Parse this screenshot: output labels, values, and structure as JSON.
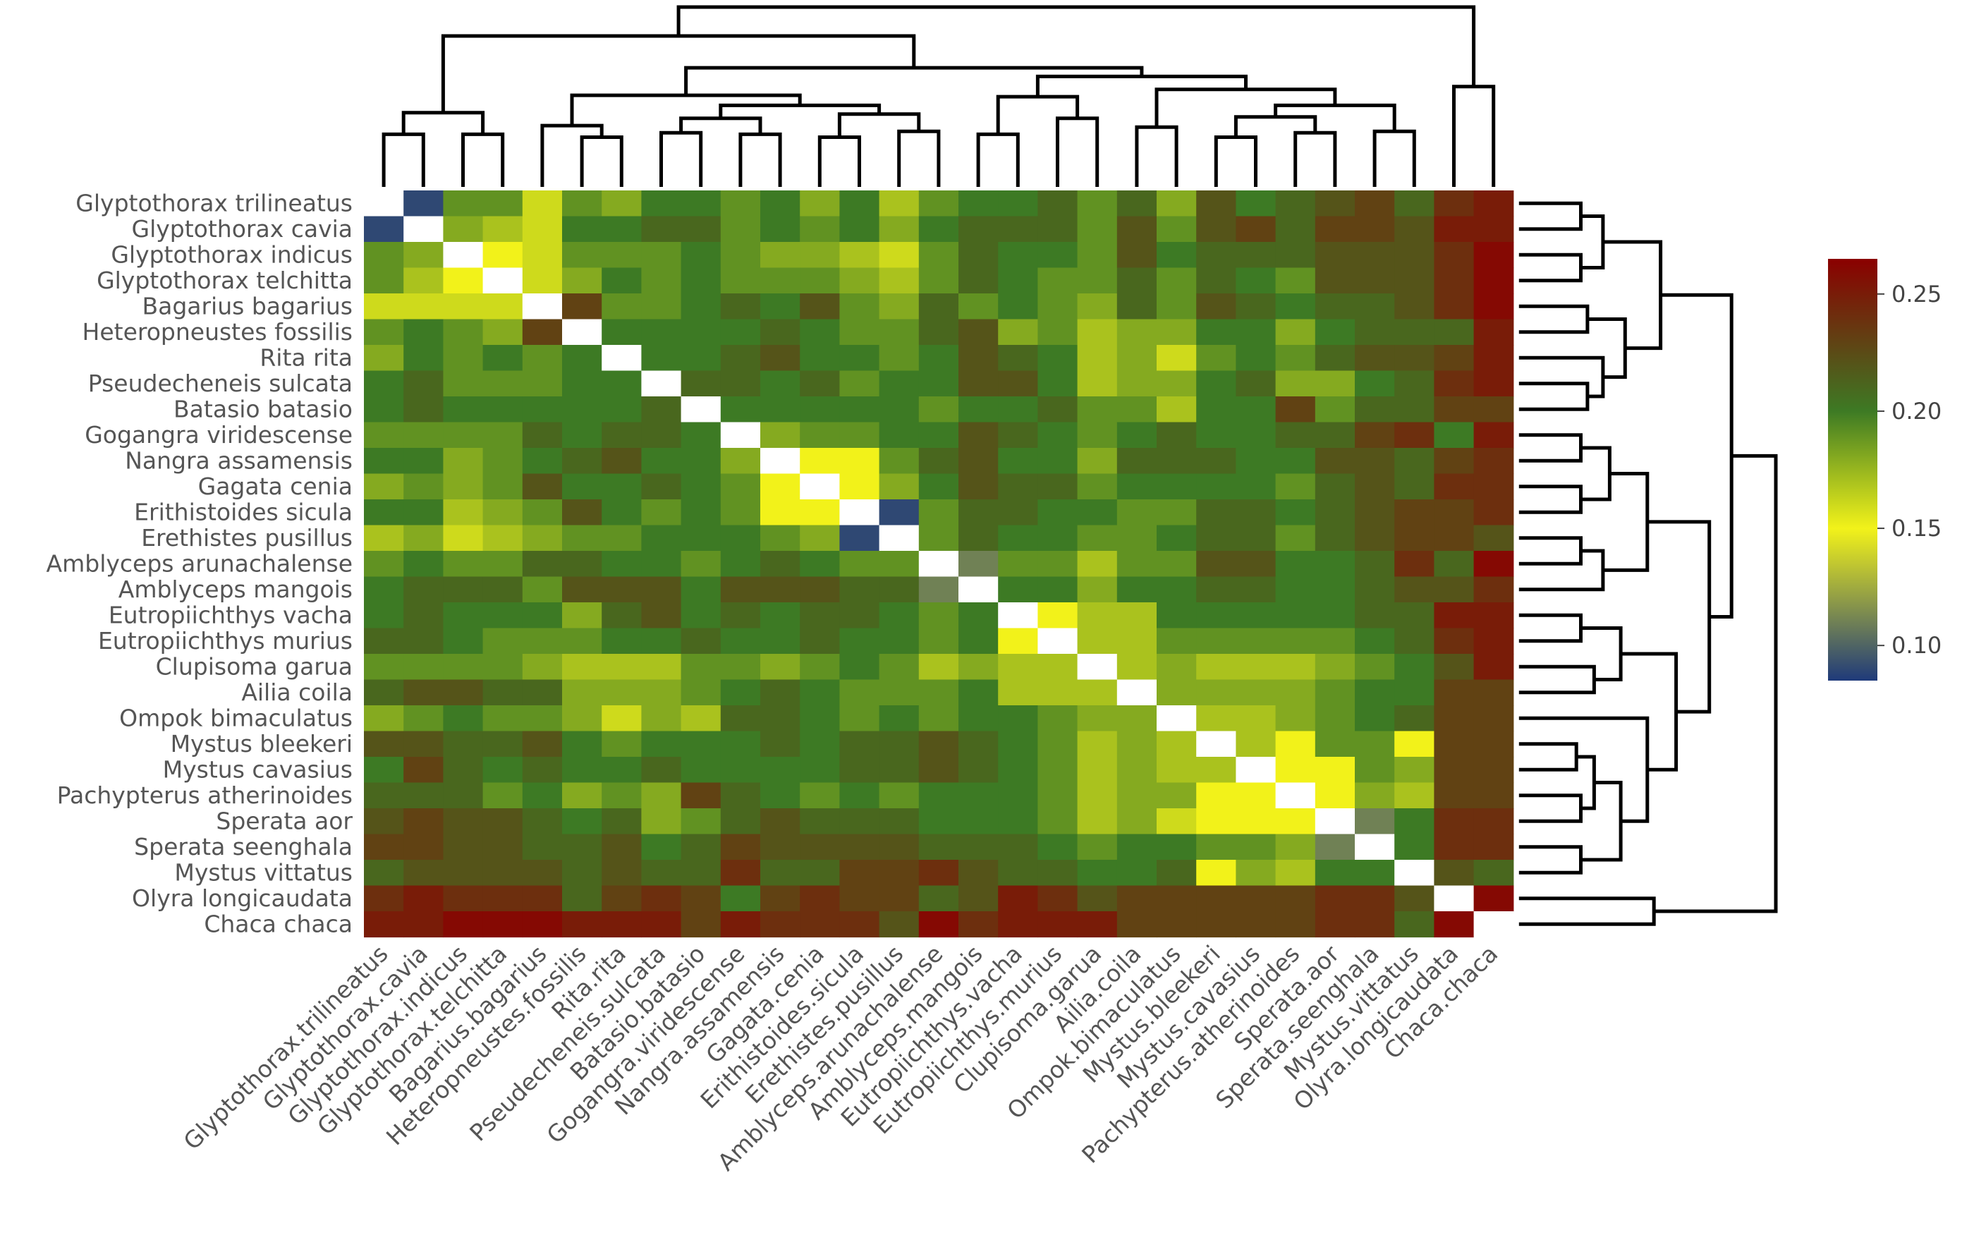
{
  "chart_data": {
    "type": "heatmap",
    "title": "",
    "xlabel": "",
    "ylabel": "",
    "row_labels": [
      "Glyptothorax trilineatus",
      "Glyptothorax cavia",
      "Glyptothorax indicus",
      "Glyptothorax telchitta",
      "Bagarius bagarius",
      "Heteropneustes fossilis",
      "Rita rita",
      "Pseudecheneis sulcata",
      "Batasio batasio",
      "Gogangra viridescense",
      "Nangra assamensis",
      "Gagata cenia",
      "Erithistoides sicula",
      "Erethistes pusillus",
      "Amblyceps arunachalense",
      "Amblyceps mangois",
      "Eutropiichthys vacha",
      "Eutropiichthys murius",
      "Clupisoma garua",
      "Ailia coila",
      "Ompok bimaculatus",
      "Mystus bleekeri",
      "Mystus cavasius",
      "Pachypterus atherinoides",
      "Sperata aor",
      "Sperata seenghala",
      "Mystus vittatus",
      "Olyra longicaudata",
      "Chaca chaca"
    ],
    "col_labels": [
      "Glyptothorax.trilineatus",
      "Glyptothorax.cavia",
      "Glyptothorax.indicus",
      "Glyptothorax.telchitta",
      "Bagarius.bagarius",
      "Heteropneustes.fossilis",
      "Rita.rita",
      "Pseudecheneis.sulcata",
      "Batasio.batasio",
      "Gogangra.viridescense",
      "Nangra.assamensis",
      "Gagata.cenia",
      "Erithistoides.sicula",
      "Erethistes.pusillus",
      "Amblyceps.arunachalense",
      "Amblyceps.mangois",
      "Eutropiichthys.vacha",
      "Eutropiichthys.murius",
      "Clupisoma.garua",
      "Ailia.coila",
      "Ompok.bimaculatus",
      "Mystus.bleekeri",
      "Mystus.cavasius",
      "Pachypterus.atherinoides",
      "Sperata.aor",
      "Sperata.seenghala",
      "Mystus.vittatus",
      "Olyra.longicaudata",
      "Chaca.chaca"
    ],
    "values": [
      [
        null,
        0.09,
        0.19,
        0.19,
        0.16,
        0.19,
        0.18,
        0.2,
        0.2,
        0.19,
        0.2,
        0.18,
        0.2,
        0.17,
        0.19,
        0.2,
        0.2,
        0.21,
        0.19,
        0.21,
        0.18,
        0.22,
        0.2,
        0.21,
        0.22,
        0.23,
        0.21,
        0.24,
        0.25
      ],
      [
        0.09,
        null,
        0.18,
        0.17,
        0.16,
        0.2,
        0.2,
        0.21,
        0.21,
        0.19,
        0.2,
        0.19,
        0.2,
        0.18,
        0.2,
        0.21,
        0.21,
        0.21,
        0.19,
        0.22,
        0.19,
        0.22,
        0.23,
        0.21,
        0.23,
        0.23,
        0.22,
        0.25,
        0.25
      ],
      [
        0.19,
        0.18,
        null,
        0.15,
        0.16,
        0.19,
        0.19,
        0.19,
        0.2,
        0.19,
        0.18,
        0.18,
        0.17,
        0.16,
        0.19,
        0.21,
        0.2,
        0.2,
        0.19,
        0.22,
        0.2,
        0.21,
        0.21,
        0.21,
        0.22,
        0.22,
        0.22,
        0.24,
        0.26
      ],
      [
        0.19,
        0.17,
        0.15,
        null,
        0.16,
        0.18,
        0.2,
        0.19,
        0.2,
        0.19,
        0.19,
        0.19,
        0.18,
        0.17,
        0.19,
        0.21,
        0.2,
        0.19,
        0.19,
        0.21,
        0.19,
        0.21,
        0.2,
        0.19,
        0.22,
        0.22,
        0.22,
        0.24,
        0.26
      ],
      [
        0.16,
        0.16,
        0.16,
        0.16,
        null,
        0.23,
        0.19,
        0.19,
        0.2,
        0.21,
        0.2,
        0.22,
        0.19,
        0.18,
        0.21,
        0.19,
        0.2,
        0.19,
        0.18,
        0.21,
        0.19,
        0.22,
        0.21,
        0.2,
        0.21,
        0.21,
        0.22,
        0.24,
        0.26
      ],
      [
        0.19,
        0.2,
        0.19,
        0.18,
        0.23,
        null,
        0.2,
        0.2,
        0.2,
        0.2,
        0.21,
        0.2,
        0.19,
        0.19,
        0.21,
        0.22,
        0.18,
        0.19,
        0.17,
        0.18,
        0.18,
        0.2,
        0.2,
        0.18,
        0.2,
        0.21,
        0.21,
        0.21,
        0.25
      ],
      [
        0.18,
        0.2,
        0.19,
        0.2,
        0.19,
        0.2,
        null,
        0.2,
        0.2,
        0.21,
        0.22,
        0.2,
        0.2,
        0.19,
        0.2,
        0.22,
        0.21,
        0.2,
        0.17,
        0.18,
        0.16,
        0.19,
        0.2,
        0.19,
        0.21,
        0.22,
        0.22,
        0.23,
        0.25
      ],
      [
        0.2,
        0.21,
        0.19,
        0.19,
        0.19,
        0.2,
        0.2,
        null,
        0.21,
        0.21,
        0.2,
        0.21,
        0.19,
        0.2,
        0.2,
        0.22,
        0.22,
        0.2,
        0.17,
        0.18,
        0.18,
        0.2,
        0.21,
        0.18,
        0.18,
        0.2,
        0.21,
        0.24,
        0.25
      ],
      [
        0.2,
        0.21,
        0.2,
        0.2,
        0.2,
        0.2,
        0.2,
        0.21,
        null,
        0.2,
        0.2,
        0.2,
        0.2,
        0.2,
        0.19,
        0.2,
        0.2,
        0.21,
        0.19,
        0.19,
        0.17,
        0.2,
        0.2,
        0.23,
        0.19,
        0.21,
        0.21,
        0.23,
        0.23
      ],
      [
        0.19,
        0.19,
        0.19,
        0.19,
        0.21,
        0.2,
        0.21,
        0.21,
        0.2,
        null,
        0.18,
        0.19,
        0.19,
        0.2,
        0.2,
        0.22,
        0.21,
        0.2,
        0.19,
        0.2,
        0.21,
        0.2,
        0.2,
        0.21,
        0.21,
        0.23,
        0.24,
        0.2,
        0.25
      ],
      [
        0.2,
        0.2,
        0.18,
        0.19,
        0.2,
        0.21,
        0.22,
        0.2,
        0.2,
        0.18,
        null,
        0.15,
        0.15,
        0.19,
        0.21,
        0.22,
        0.2,
        0.2,
        0.18,
        0.21,
        0.21,
        0.21,
        0.2,
        0.2,
        0.22,
        0.22,
        0.21,
        0.23,
        0.24
      ],
      [
        0.18,
        0.19,
        0.18,
        0.19,
        0.22,
        0.2,
        0.2,
        0.21,
        0.2,
        0.19,
        0.15,
        null,
        0.15,
        0.18,
        0.2,
        0.22,
        0.21,
        0.21,
        0.19,
        0.2,
        0.2,
        0.2,
        0.2,
        0.19,
        0.21,
        0.22,
        0.21,
        0.24,
        0.24
      ],
      [
        0.2,
        0.2,
        0.17,
        0.18,
        0.19,
        0.22,
        0.2,
        0.19,
        0.2,
        0.19,
        0.15,
        0.15,
        null,
        0.09,
        0.19,
        0.21,
        0.21,
        0.2,
        0.2,
        0.19,
        0.19,
        0.21,
        0.21,
        0.2,
        0.21,
        0.22,
        0.23,
        0.23,
        0.24
      ],
      [
        0.17,
        0.18,
        0.16,
        0.17,
        0.18,
        0.19,
        0.19,
        0.2,
        0.2,
        0.2,
        0.19,
        0.18,
        0.09,
        null,
        0.19,
        0.21,
        0.2,
        0.2,
        0.19,
        0.19,
        0.2,
        0.21,
        0.21,
        0.19,
        0.21,
        0.22,
        0.23,
        0.23,
        0.22
      ],
      [
        0.19,
        0.2,
        0.19,
        0.19,
        0.21,
        0.21,
        0.2,
        0.2,
        0.19,
        0.2,
        0.21,
        0.2,
        0.19,
        0.19,
        null,
        0.11,
        0.19,
        0.19,
        0.17,
        0.19,
        0.19,
        0.22,
        0.22,
        0.2,
        0.2,
        0.21,
        0.24,
        0.21,
        0.26
      ],
      [
        0.2,
        0.21,
        0.21,
        0.21,
        0.19,
        0.22,
        0.22,
        0.22,
        0.2,
        0.22,
        0.22,
        0.22,
        0.21,
        0.21,
        0.11,
        null,
        0.2,
        0.2,
        0.18,
        0.2,
        0.2,
        0.21,
        0.21,
        0.2,
        0.2,
        0.21,
        0.22,
        0.22,
        0.24
      ],
      [
        0.2,
        0.21,
        0.2,
        0.2,
        0.2,
        0.18,
        0.21,
        0.22,
        0.2,
        0.21,
        0.2,
        0.21,
        0.21,
        0.2,
        0.19,
        0.2,
        null,
        0.15,
        0.17,
        0.17,
        0.2,
        0.2,
        0.2,
        0.2,
        0.2,
        0.21,
        0.21,
        0.25,
        0.25
      ],
      [
        0.21,
        0.21,
        0.2,
        0.19,
        0.19,
        0.19,
        0.2,
        0.2,
        0.21,
        0.2,
        0.2,
        0.21,
        0.2,
        0.2,
        0.19,
        0.2,
        0.15,
        null,
        0.17,
        0.17,
        0.19,
        0.19,
        0.19,
        0.19,
        0.19,
        0.2,
        0.21,
        0.24,
        0.25
      ],
      [
        0.19,
        0.19,
        0.19,
        0.19,
        0.18,
        0.17,
        0.17,
        0.17,
        0.19,
        0.19,
        0.18,
        0.19,
        0.2,
        0.19,
        0.17,
        0.18,
        0.17,
        0.17,
        null,
        0.17,
        0.18,
        0.17,
        0.17,
        0.17,
        0.18,
        0.19,
        0.2,
        0.22,
        0.25
      ],
      [
        0.21,
        0.22,
        0.22,
        0.21,
        0.21,
        0.18,
        0.18,
        0.18,
        0.19,
        0.2,
        0.21,
        0.2,
        0.19,
        0.19,
        0.19,
        0.2,
        0.17,
        0.17,
        0.17,
        null,
        0.18,
        0.18,
        0.18,
        0.18,
        0.19,
        0.2,
        0.2,
        0.23,
        0.23
      ],
      [
        0.18,
        0.19,
        0.2,
        0.19,
        0.19,
        0.18,
        0.16,
        0.18,
        0.17,
        0.21,
        0.21,
        0.2,
        0.19,
        0.2,
        0.19,
        0.2,
        0.2,
        0.19,
        0.18,
        0.18,
        null,
        0.17,
        0.17,
        0.18,
        0.19,
        0.2,
        0.21,
        0.23,
        0.23
      ],
      [
        0.22,
        0.22,
        0.21,
        0.21,
        0.22,
        0.2,
        0.19,
        0.2,
        0.2,
        0.2,
        0.21,
        0.2,
        0.21,
        0.21,
        0.22,
        0.21,
        0.2,
        0.19,
        0.17,
        0.18,
        0.17,
        null,
        0.17,
        0.15,
        0.19,
        0.19,
        0.15,
        0.23,
        0.23
      ],
      [
        0.2,
        0.23,
        0.21,
        0.2,
        0.21,
        0.2,
        0.2,
        0.21,
        0.2,
        0.2,
        0.2,
        0.2,
        0.21,
        0.21,
        0.22,
        0.21,
        0.2,
        0.19,
        0.17,
        0.18,
        0.17,
        0.17,
        null,
        0.15,
        0.15,
        0.19,
        0.18,
        0.23,
        0.23
      ],
      [
        0.21,
        0.21,
        0.21,
        0.19,
        0.2,
        0.18,
        0.19,
        0.18,
        0.23,
        0.21,
        0.2,
        0.19,
        0.2,
        0.19,
        0.2,
        0.2,
        0.2,
        0.19,
        0.17,
        0.18,
        0.18,
        0.15,
        0.15,
        null,
        0.15,
        0.18,
        0.17,
        0.23,
        0.23
      ],
      [
        0.22,
        0.23,
        0.22,
        0.22,
        0.21,
        0.2,
        0.21,
        0.18,
        0.19,
        0.21,
        0.22,
        0.21,
        0.21,
        0.21,
        0.2,
        0.2,
        0.2,
        0.19,
        0.17,
        0.18,
        0.16,
        0.15,
        0.15,
        0.15,
        null,
        0.11,
        0.2,
        0.24,
        0.24
      ],
      [
        0.23,
        0.23,
        0.22,
        0.22,
        0.21,
        0.21,
        0.22,
        0.2,
        0.21,
        0.23,
        0.22,
        0.22,
        0.22,
        0.22,
        0.21,
        0.21,
        0.21,
        0.2,
        0.19,
        0.2,
        0.2,
        0.19,
        0.19,
        0.18,
        0.11,
        null,
        0.2,
        0.24,
        0.24
      ],
      [
        0.21,
        0.22,
        0.22,
        0.22,
        0.22,
        0.21,
        0.22,
        0.21,
        0.21,
        0.24,
        0.21,
        0.21,
        0.23,
        0.23,
        0.24,
        0.22,
        0.21,
        0.21,
        0.2,
        0.2,
        0.21,
        0.15,
        0.18,
        0.17,
        0.2,
        0.2,
        null,
        0.22,
        0.21
      ],
      [
        0.24,
        0.25,
        0.24,
        0.24,
        0.24,
        0.21,
        0.23,
        0.24,
        0.23,
        0.2,
        0.23,
        0.24,
        0.23,
        0.23,
        0.21,
        0.22,
        0.25,
        0.24,
        0.22,
        0.23,
        0.23,
        0.23,
        0.23,
        0.23,
        0.24,
        0.24,
        0.22,
        null,
        0.26
      ],
      [
        0.25,
        0.25,
        0.26,
        0.26,
        0.26,
        0.25,
        0.25,
        0.25,
        0.23,
        0.25,
        0.24,
        0.24,
        0.24,
        0.22,
        0.26,
        0.24,
        0.25,
        0.25,
        0.25,
        0.23,
        0.23,
        0.23,
        0.23,
        0.23,
        0.24,
        0.24,
        0.21,
        0.26,
        null
      ]
    ],
    "diagonal_color": "#ffffff",
    "colorscale": {
      "range": [
        0.085,
        0.265
      ],
      "stops": [
        {
          "value": 0.085,
          "color": "#1f3a7a"
        },
        {
          "value": 0.15,
          "color": "#f2f21a"
        },
        {
          "value": 0.2,
          "color": "#3d7a24"
        },
        {
          "value": 0.265,
          "color": "#8b0000"
        }
      ],
      "ticks": [
        "0.10",
        "0.15",
        "0.20",
        "0.25"
      ],
      "tick_values": [
        0.1,
        0.15,
        0.2,
        0.25
      ]
    },
    "grid": false,
    "legend": "right",
    "col_dendrogram_position": "top",
    "row_dendrogram_position": "right"
  }
}
